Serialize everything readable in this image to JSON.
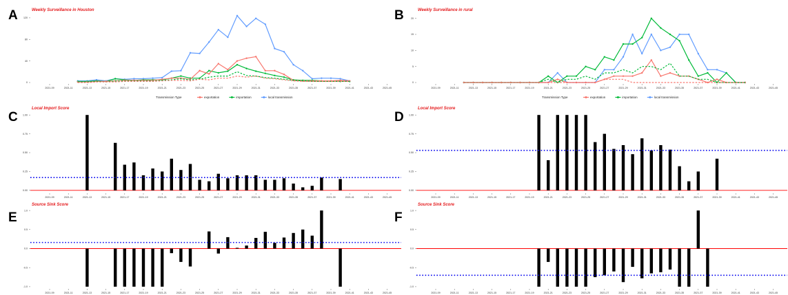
{
  "legend": {
    "title": "Transmission Type",
    "items": [
      {
        "label": "exportation",
        "color": "#f8766d"
      },
      {
        "label": "importation",
        "color": "#00ba38"
      },
      {
        "label": "local transmission",
        "color": "#619cff"
      }
    ]
  },
  "colors": {
    "bar": "#000000",
    "threshold": "#0000ee",
    "zero_line": "#ff0000"
  },
  "chart_data": [
    {
      "panel": "A",
      "type": "line",
      "title": "Weekly Surveillance in Houston",
      "x_ticks": [
        "2021-09",
        "2021-11",
        "2021-13",
        "2021-15",
        "2021-17",
        "2021-19",
        "2021-21",
        "2021-23",
        "2021-25",
        "2021-27",
        "2021-29",
        "2021-31",
        "2021-33",
        "2021-35",
        "2021-37",
        "2021-39",
        "2021-41",
        "2021-43",
        "2021-45"
      ],
      "y_ticks": [
        0,
        40,
        80,
        120
      ],
      "ylim": [
        0,
        125
      ],
      "weeks": [
        12,
        13,
        14,
        15,
        16,
        17,
        18,
        19,
        20,
        21,
        22,
        23,
        24,
        25,
        26,
        27,
        28,
        29,
        30,
        31,
        32,
        33,
        34,
        35,
        36,
        37,
        38,
        39,
        40,
        41,
        42
      ],
      "series": [
        {
          "name": "local transmission",
          "values": [
            3,
            3,
            5,
            3,
            7,
            6,
            7,
            7,
            8,
            9,
            21,
            22,
            55,
            54,
            75,
            98,
            84,
            124,
            104,
            119,
            108,
            63,
            57,
            33,
            22,
            7,
            8,
            8,
            7,
            3,
            null
          ]
        },
        {
          "name": "importation",
          "values": [
            2,
            2,
            3,
            2,
            7,
            5,
            4,
            5,
            5,
            5,
            8,
            12,
            8,
            8,
            22,
            18,
            21,
            33,
            26,
            21,
            17,
            13,
            10,
            5,
            4,
            4,
            3,
            3,
            2,
            2,
            null
          ]
        },
        {
          "name": "exportation",
          "values": [
            1,
            1,
            2,
            2,
            3,
            4,
            4,
            4,
            4,
            6,
            8,
            8,
            6,
            22,
            16,
            35,
            24,
            40,
            45,
            48,
            22,
            22,
            15,
            4,
            3,
            3,
            3,
            3,
            4,
            3,
            null
          ]
        },
        {
          "name": "importation (dashed)",
          "values": [
            1,
            1,
            2,
            1,
            3,
            3,
            3,
            3,
            3,
            4,
            5,
            7,
            5,
            6,
            10,
            12,
            12,
            20,
            13,
            12,
            9,
            8,
            6,
            4,
            3,
            2,
            2,
            2,
            2,
            2,
            null
          ]
        },
        {
          "name": "exportation (dashed)",
          "values": [
            0,
            0,
            1,
            1,
            1,
            2,
            2,
            2,
            2,
            3,
            4,
            4,
            3,
            6,
            5,
            8,
            8,
            12,
            10,
            12,
            8,
            7,
            5,
            3,
            2,
            2,
            2,
            2,
            2,
            2,
            null
          ]
        }
      ]
    },
    {
      "panel": "B",
      "type": "line",
      "title": "Weekly Surveillance in rural",
      "x_ticks": [
        "2021-09",
        "2021-11",
        "2021-13",
        "2021-15",
        "2021-17",
        "2021-19",
        "2021-21",
        "2021-23",
        "2021-25",
        "2021-27",
        "2021-29",
        "2021-31",
        "2021-33",
        "2021-35",
        "2021-37",
        "2021-39",
        "2021-41",
        "2021-43",
        "2021-45"
      ],
      "y_ticks": [
        0,
        5,
        10,
        15,
        20
      ],
      "ylim": [
        0,
        21
      ],
      "weeks": [
        12,
        13,
        14,
        15,
        16,
        17,
        18,
        19,
        20,
        21,
        22,
        23,
        24,
        25,
        26,
        27,
        28,
        29,
        30,
        31,
        32,
        33,
        34,
        35,
        36,
        37,
        38,
        39,
        40,
        41,
        42
      ],
      "series": [
        {
          "name": "local transmission",
          "values": [
            0,
            0,
            0,
            0,
            0,
            0,
            0,
            0,
            0,
            0,
            3,
            0,
            0,
            0,
            0,
            4,
            4,
            8,
            15,
            9,
            15,
            10,
            11,
            15,
            15,
            9,
            4,
            4,
            3,
            0,
            0
          ]
        },
        {
          "name": "importation",
          "values": [
            0,
            0,
            0,
            0,
            0,
            0,
            0,
            0,
            0,
            2,
            0,
            2,
            2,
            5,
            4,
            8,
            7,
            12,
            12,
            14,
            20,
            17,
            15,
            13,
            7,
            2,
            3,
            0,
            3,
            0,
            0
          ]
        },
        {
          "name": "exportation",
          "values": [
            0,
            0,
            0,
            0,
            0,
            0,
            0,
            0,
            0,
            0,
            1,
            0,
            0,
            0,
            0,
            1,
            2,
            2,
            2,
            3,
            7,
            2,
            3,
            2,
            2,
            1,
            0,
            1,
            0,
            0,
            0
          ]
        },
        {
          "name": "importation (dashed)",
          "values": [
            0,
            0,
            0,
            0,
            0,
            0,
            0,
            0,
            0,
            1,
            0,
            1,
            1,
            2,
            1,
            3,
            3,
            4,
            3,
            5,
            5,
            4,
            6,
            2,
            2,
            1,
            1,
            0,
            0,
            0,
            0
          ]
        },
        {
          "name": "exportation (dashed)",
          "values": [
            0,
            0,
            0,
            0,
            0,
            0,
            0,
            0,
            0,
            0,
            0,
            0,
            0,
            0,
            0,
            1,
            1,
            1,
            0,
            0,
            0,
            0,
            0,
            0,
            0,
            0,
            0,
            0,
            0,
            0,
            0
          ]
        }
      ]
    },
    {
      "panel": "C",
      "type": "bar",
      "title": "Local Import Score",
      "x_ticks": [
        "2021-09",
        "2021-11",
        "2021-13",
        "2021-15",
        "2021-17",
        "2021-19",
        "2021-21",
        "2021-23",
        "2021-25",
        "2021-27",
        "2021-29",
        "2021-31",
        "2021-33",
        "2021-35",
        "2021-37",
        "2021-39",
        "2021-41",
        "2021-43",
        "2021-45"
      ],
      "y_ticks": [
        "0.00",
        "0.25",
        "0.50",
        "0.75",
        "1.00"
      ],
      "ylim": [
        -0.02,
        1.02
      ],
      "threshold": 0.17,
      "bars": [
        [
          13,
          1.0
        ],
        [
          16,
          0.63
        ],
        [
          17,
          0.34
        ],
        [
          18,
          0.37
        ],
        [
          19,
          0.2
        ],
        [
          20,
          0.29
        ],
        [
          21,
          0.25
        ],
        [
          22,
          0.42
        ],
        [
          23,
          0.27
        ],
        [
          24,
          0.35
        ],
        [
          25,
          0.14
        ],
        [
          26,
          0.12
        ],
        [
          27,
          0.22
        ],
        [
          28,
          0.16
        ],
        [
          29,
          0.2
        ],
        [
          30,
          0.2
        ],
        [
          31,
          0.2
        ],
        [
          32,
          0.14
        ],
        [
          33,
          0.14
        ],
        [
          34,
          0.16
        ],
        [
          35,
          0.09
        ],
        [
          36,
          0.04
        ],
        [
          37,
          0.06
        ],
        [
          38,
          0.17
        ],
        [
          40,
          0.15
        ]
      ]
    },
    {
      "panel": "D",
      "type": "bar",
      "title": "Local Import Score",
      "x_ticks": [
        "2021-09",
        "2021-11",
        "2021-13",
        "2021-15",
        "2021-17",
        "2021-19",
        "2021-21",
        "2021-23",
        "2021-25",
        "2021-27",
        "2021-29",
        "2021-31",
        "2021-33",
        "2021-35",
        "2021-37",
        "2021-39",
        "2021-41",
        "2021-43",
        "2021-45"
      ],
      "y_ticks": [
        "0.00",
        "0.25",
        "0.50",
        "0.75",
        "1.00"
      ],
      "ylim": [
        -0.02,
        1.02
      ],
      "threshold": 0.53,
      "bars": [
        [
          20,
          1.0
        ],
        [
          21,
          0.4
        ],
        [
          22,
          1.0
        ],
        [
          23,
          1.0
        ],
        [
          24,
          1.0
        ],
        [
          25,
          1.0
        ],
        [
          26,
          0.64
        ],
        [
          27,
          0.75
        ],
        [
          28,
          0.55
        ],
        [
          29,
          0.6
        ],
        [
          30,
          0.48
        ],
        [
          31,
          0.69
        ],
        [
          32,
          0.53
        ],
        [
          33,
          0.6
        ],
        [
          34,
          0.54
        ],
        [
          35,
          0.32
        ],
        [
          36,
          0.12
        ],
        [
          37,
          0.25
        ],
        [
          39,
          0.42
        ]
      ]
    },
    {
      "panel": "E",
      "type": "bar",
      "title": "Source Sink Score",
      "x_ticks": [
        "2021-09",
        "2021-11",
        "2021-13",
        "2021-15",
        "2021-17",
        "2021-19",
        "2021-21",
        "2021-23",
        "2021-25",
        "2021-27",
        "2021-29",
        "2021-31",
        "2021-33",
        "2021-35",
        "2021-37",
        "2021-39",
        "2021-41",
        "2021-43",
        "2021-45"
      ],
      "y_ticks": [
        "-1.0",
        "-0.5",
        "0.0",
        "0.5",
        "1.0"
      ],
      "ylim": [
        -1.02,
        1.02
      ],
      "threshold": 0.16,
      "bars": [
        [
          13,
          -1.0
        ],
        [
          16,
          -1.0
        ],
        [
          17,
          -1.0
        ],
        [
          18,
          -1.0
        ],
        [
          19,
          -1.0
        ],
        [
          20,
          -1.0
        ],
        [
          21,
          -1.0
        ],
        [
          22,
          -0.12
        ],
        [
          23,
          -0.35
        ],
        [
          24,
          -0.47
        ],
        [
          26,
          0.45
        ],
        [
          27,
          -0.13
        ],
        [
          28,
          0.3
        ],
        [
          29,
          0.02
        ],
        [
          30,
          0.08
        ],
        [
          31,
          0.28
        ],
        [
          32,
          0.44
        ],
        [
          33,
          0.15
        ],
        [
          34,
          0.29
        ],
        [
          35,
          0.41
        ],
        [
          36,
          0.5
        ],
        [
          37,
          0.34
        ],
        [
          38,
          1.0
        ],
        [
          40,
          -1.0
        ]
      ]
    },
    {
      "panel": "F",
      "type": "bar",
      "title": "Source Sink Score",
      "x_ticks": [
        "2021-09",
        "2021-11",
        "2021-13",
        "2021-15",
        "2021-17",
        "2021-19",
        "2021-21",
        "2021-23",
        "2021-25",
        "2021-27",
        "2021-29",
        "2021-31",
        "2021-33",
        "2021-35",
        "2021-37",
        "2021-39",
        "2021-41",
        "2021-43",
        "2021-45"
      ],
      "y_ticks": [
        "-1.0",
        "-0.5",
        "0.0",
        "0.5",
        "1.0"
      ],
      "ylim": [
        -1.02,
        1.02
      ],
      "threshold": -0.7,
      "bars": [
        [
          20,
          -1.0
        ],
        [
          21,
          -0.35
        ],
        [
          22,
          -1.0
        ],
        [
          23,
          -1.0
        ],
        [
          24,
          -1.0
        ],
        [
          25,
          -1.0
        ],
        [
          26,
          -0.75
        ],
        [
          27,
          -0.7
        ],
        [
          28,
          -0.6
        ],
        [
          29,
          -0.88
        ],
        [
          30,
          -0.48
        ],
        [
          31,
          -0.78
        ],
        [
          32,
          -0.65
        ],
        [
          33,
          -0.62
        ],
        [
          34,
          -0.55
        ],
        [
          35,
          -1.0
        ],
        [
          36,
          -1.0
        ],
        [
          37,
          1.0
        ],
        [
          38,
          -1.0
        ]
      ]
    }
  ]
}
